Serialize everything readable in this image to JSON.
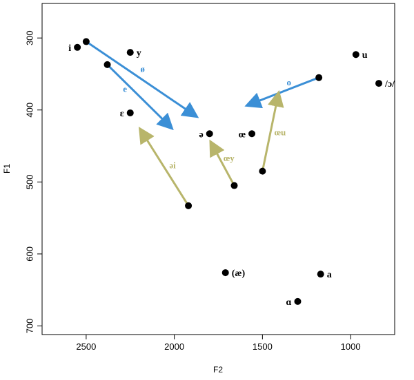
{
  "chart_data": {
    "type": "scatter",
    "title": "",
    "xlabel": "F2",
    "ylabel": "F1",
    "xlim": [
      2750,
      750
    ],
    "ylim": [
      712,
      252
    ],
    "x_ticks": [
      2500,
      2000,
      1500,
      1000
    ],
    "y_ticks": [
      300,
      400,
      500,
      600,
      700
    ],
    "x_tick_labels": [
      "2500",
      "2000",
      "1500",
      "1000"
    ],
    "y_tick_labels": [
      "300",
      "400",
      "500",
      "600",
      "700"
    ],
    "grid": false,
    "points": [
      {
        "label": "i",
        "x": 2550,
        "y": 313,
        "label_side": "left"
      },
      {
        "label": "",
        "x": 2500,
        "y": 305,
        "label_side": "none"
      },
      {
        "label": "",
        "x": 2380,
        "y": 337,
        "label_side": "none"
      },
      {
        "label": "y",
        "x": 2250,
        "y": 320,
        "label_side": "right"
      },
      {
        "label": "ɛ",
        "x": 2250,
        "y": 404,
        "label_side": "left"
      },
      {
        "label": "ə",
        "x": 1800,
        "y": 433,
        "label_side": "left"
      },
      {
        "label": "œ",
        "x": 1560,
        "y": 433,
        "label_side": "left"
      },
      {
        "label": "",
        "x": 1920,
        "y": 533,
        "label_side": "none"
      },
      {
        "label": "",
        "x": 1660,
        "y": 505,
        "label_side": "none"
      },
      {
        "label": "",
        "x": 1500,
        "y": 485,
        "label_side": "none"
      },
      {
        "label": "",
        "x": 1180,
        "y": 355,
        "label_side": "none"
      },
      {
        "label": "u",
        "x": 970,
        "y": 323,
        "label_side": "right"
      },
      {
        "label": "/ɔ/",
        "x": 840,
        "y": 363,
        "label_side": "right"
      },
      {
        "label": "(æ)",
        "x": 1710,
        "y": 626,
        "label_side": "right"
      },
      {
        "label": "a",
        "x": 1170,
        "y": 628,
        "label_side": "right"
      },
      {
        "label": "ɑ",
        "x": 1300,
        "y": 666,
        "label_side": "left"
      }
    ],
    "arrows": [
      {
        "label": "ø",
        "color": "#3b8fd6",
        "from": [
          2500,
          305
        ],
        "to": [
          1880,
          408
        ],
        "label_at": [
          2180,
          347
        ]
      },
      {
        "label": "e",
        "color": "#3b8fd6",
        "from": [
          2380,
          337
        ],
        "to": [
          2020,
          424
        ],
        "label_at": [
          2280,
          375
        ]
      },
      {
        "label": "o",
        "color": "#3b8fd6",
        "from": [
          1180,
          355
        ],
        "to": [
          1580,
          393
        ],
        "label_at": [
          1350,
          366
        ]
      },
      {
        "label": "əi",
        "color": "#b8b56b",
        "from": [
          1920,
          533
        ],
        "to": [
          2190,
          428
        ],
        "label_at": [
          2010,
          481
        ]
      },
      {
        "label": "œy",
        "color": "#b8b56b",
        "from": [
          1660,
          505
        ],
        "to": [
          1790,
          446
        ],
        "label_at": [
          1690,
          471
        ]
      },
      {
        "label": "œu",
        "color": "#b8b56b",
        "from": [
          1500,
          485
        ],
        "to": [
          1410,
          378
        ],
        "label_at": [
          1400,
          435
        ]
      }
    ]
  }
}
